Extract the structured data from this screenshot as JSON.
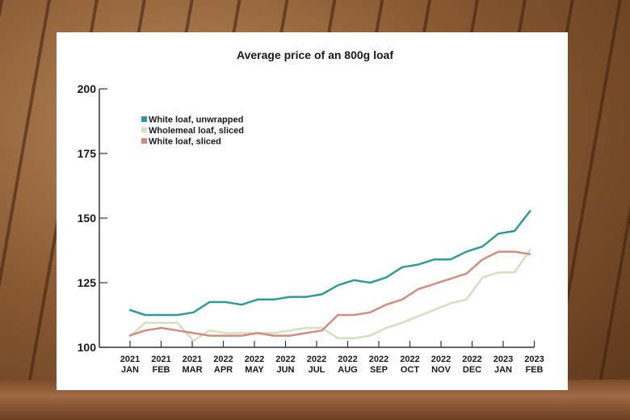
{
  "chart_data": {
    "type": "line",
    "title": "Average price of an 800g loaf",
    "xlabel": "",
    "ylabel": "",
    "ylim": [
      100,
      200
    ],
    "yticks": [
      "100",
      "125",
      "150",
      "175",
      "200"
    ],
    "xtick_labels": [
      {
        "year": "2021",
        "month": "JAN"
      },
      {
        "year": "2021",
        "month": "FEB"
      },
      {
        "year": "2021",
        "month": "MAR"
      },
      {
        "year": "2022",
        "month": "APR"
      },
      {
        "year": "2022",
        "month": "MAY"
      },
      {
        "year": "2022",
        "month": "JUN"
      },
      {
        "year": "2022",
        "month": "JUL"
      },
      {
        "year": "2022",
        "month": "AUG"
      },
      {
        "year": "2022",
        "month": "SEP"
      },
      {
        "year": "2022",
        "month": "OCT"
      },
      {
        "year": "2022",
        "month": "NOV"
      },
      {
        "year": "2022",
        "month": "DEC"
      },
      {
        "year": "2023",
        "month": "JAN"
      },
      {
        "year": "2023",
        "month": "FEB"
      }
    ],
    "grid": false,
    "legend_position": "top-left",
    "series": [
      {
        "name": "White loaf, unwrapped",
        "color": "#2e9c93",
        "values": [
          114.5,
          112.5,
          112.5,
          112.5,
          113.5,
          117.5,
          117.5,
          116.5,
          118.5,
          118.5,
          119.5,
          119.5,
          120.5,
          124,
          126,
          125,
          127,
          131,
          132,
          134,
          134,
          137,
          139,
          144,
          145,
          153
        ]
      },
      {
        "name": "Wholemeal loaf, sliced",
        "color": "#d3e0c0",
        "values": [
          104,
          109.5,
          109.5,
          109.5,
          102.5,
          106.5,
          105.5,
          105.5,
          105.5,
          105.5,
          106.5,
          107.5,
          107.5,
          103.5,
          103.5,
          104.5,
          107.5,
          109.5,
          112,
          114.5,
          117,
          118.5,
          127,
          129,
          129,
          138
        ]
      },
      {
        "name": "White loaf, sliced",
        "color": "#cf8f7e",
        "values": [
          104.5,
          106.5,
          107.5,
          106.5,
          105.5,
          104.5,
          104.5,
          104.5,
          105.5,
          104.5,
          104.5,
          105.5,
          106.5,
          112.5,
          112.5,
          113.5,
          116.5,
          118.5,
          122.5,
          124.5,
          126.5,
          128.5,
          134,
          137,
          137,
          136
        ]
      }
    ]
  }
}
